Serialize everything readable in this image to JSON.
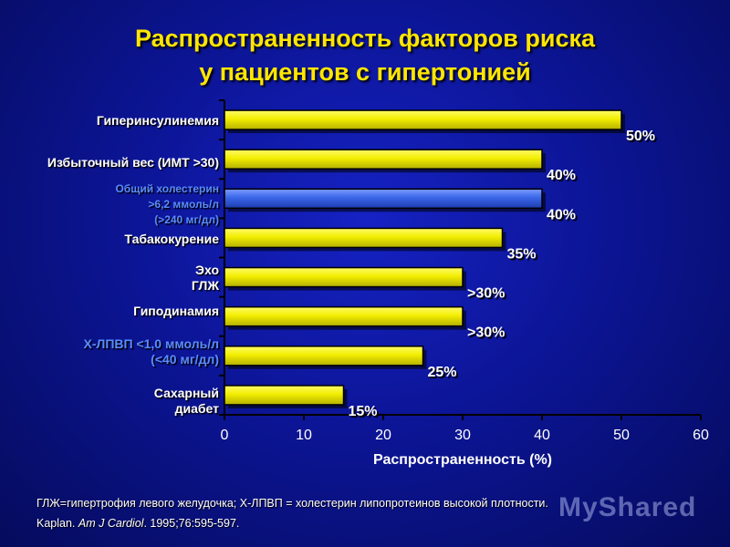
{
  "title": {
    "line1": "Распространенность факторов риска",
    "line2": "у пациентов с гипертонией"
  },
  "colors": {
    "background": "#0c1596",
    "title": "#ffe600",
    "bar_yellow": "#f2ee00",
    "bar_blue": "#3a66e8",
    "label_white": "#ffffff",
    "label_blue": "#5a8cff"
  },
  "chart_data": {
    "type": "bar",
    "orientation": "horizontal",
    "categories": [
      "Гиперинсулинемия",
      "Избыточный вес (ИМТ >30)",
      "Общий холестерин >6,2 ммоль/л (>240 мг/дл)",
      "Табакокурение",
      "Эхо ГЛЖ",
      "Гиподинамия",
      "Х-ЛПВП <1,0 ммоль/л (<40 мг/дл)",
      "Сахарный диабет"
    ],
    "category_lines": [
      [
        "Гиперинсулинемия"
      ],
      [
        "Избыточный вес (ИМТ >30)"
      ],
      [
        "Общий холестерин",
        ">6,2 ммоль/л",
        "(>240 мг/дл)"
      ],
      [
        "Табакокурение"
      ],
      [
        "Эхо",
        "ГЛЖ"
      ],
      [
        "Гиподинамия"
      ],
      [
        "Х-ЛПВП <1,0 ммоль/л",
        "(<40 мг/дл)"
      ],
      [
        "Сахарный",
        "диабет"
      ]
    ],
    "values": [
      50,
      40,
      40,
      35,
      30,
      30,
      25,
      15
    ],
    "value_labels": [
      "50%",
      "40%",
      "40%",
      "35%",
      ">30%",
      ">30%",
      "25%",
      "15%"
    ],
    "bar_colors": [
      "yellow",
      "yellow",
      "blue",
      "yellow",
      "yellow",
      "yellow",
      "yellow",
      "yellow"
    ],
    "label_colors": [
      "white",
      "white",
      "blue",
      "white",
      "white",
      "white",
      "blue",
      "white"
    ],
    "xlabel": "Распространенность (%)",
    "ylabel": "",
    "xlim": [
      0,
      60
    ],
    "xticks": [
      "0",
      "10",
      "20",
      "30",
      "40",
      "50",
      "60"
    ],
    "grid": false,
    "legend": "none"
  },
  "footnote": {
    "line1": "ГЛЖ=гипертрофия левого желудочка; Х-ЛПВП = холестерин липопротеинов высокой плотности.",
    "line2_author": "Kaplan.",
    "line2_journal": "Am J Cardiol",
    "line2_ref": ". 1995;76:595-597."
  },
  "watermark": "MyShared"
}
